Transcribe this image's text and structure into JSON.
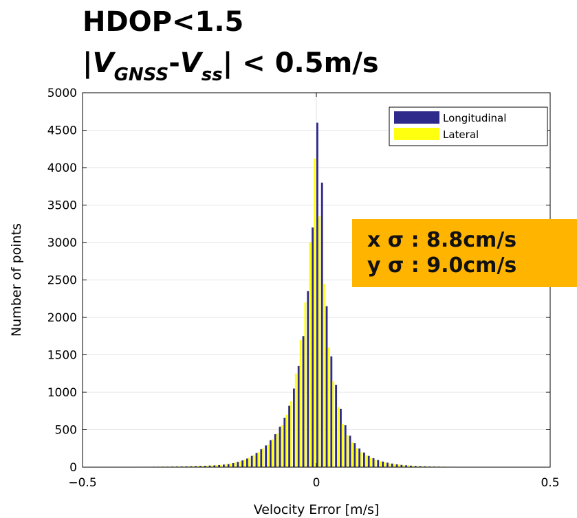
{
  "title_line1": "HDOP<1.5",
  "title_line2": {
    "prefix": "|",
    "v1": "V",
    "sub1": "GNSS",
    "dash": "-",
    "v2": "V",
    "sub2": "ss",
    "suffix": "| < 0.5m/s"
  },
  "stats": {
    "x_sigma": "x σ : 8.8cm/s",
    "y_sigma": "y σ : 9.0cm/s"
  },
  "colors": {
    "longitudinal": "#2e2a8c",
    "lateral": "#ffff10",
    "stats_background": "#ffb400"
  },
  "chart_data": {
    "type": "bar",
    "xlabel": "Velocity Error [m/s]",
    "ylabel": "Number of points",
    "xlim": [
      -0.5,
      0.5
    ],
    "ylim": [
      0,
      5000
    ],
    "xticks": [
      "−0.5",
      "0",
      "0.5"
    ],
    "yticks": [
      "0",
      "500",
      "1000",
      "1500",
      "2000",
      "2500",
      "3000",
      "3500",
      "4000",
      "4500",
      "5000"
    ],
    "grid": true,
    "legend_position": "top-right",
    "bin_width": 0.01,
    "x": [
      -0.5,
      -0.49,
      -0.48,
      -0.47,
      -0.46,
      -0.45,
      -0.44,
      -0.43,
      -0.42,
      -0.41,
      -0.4,
      -0.39,
      -0.38,
      -0.37,
      -0.36,
      -0.35,
      -0.34,
      -0.33,
      -0.32,
      -0.31,
      -0.3,
      -0.29,
      -0.28,
      -0.27,
      -0.26,
      -0.25,
      -0.24,
      -0.23,
      -0.22,
      -0.21,
      -0.2,
      -0.19,
      -0.18,
      -0.17,
      -0.16,
      -0.15,
      -0.14,
      -0.13,
      -0.12,
      -0.11,
      -0.1,
      -0.09,
      -0.08,
      -0.07,
      -0.06,
      -0.05,
      -0.04,
      -0.03,
      -0.02,
      -0.01,
      0.0,
      0.01,
      0.02,
      0.03,
      0.04,
      0.05,
      0.06,
      0.07,
      0.08,
      0.09,
      0.1,
      0.11,
      0.12,
      0.13,
      0.14,
      0.15,
      0.16,
      0.17,
      0.18,
      0.19,
      0.2,
      0.21,
      0.22,
      0.23,
      0.24,
      0.25,
      0.26,
      0.27,
      0.28,
      0.29,
      0.3,
      0.31,
      0.32,
      0.33,
      0.34,
      0.35,
      0.36,
      0.37,
      0.38,
      0.39,
      0.4,
      0.41,
      0.42,
      0.43,
      0.44,
      0.45,
      0.46,
      0.47,
      0.48,
      0.49
    ],
    "series": [
      {
        "name": "Longitudinal",
        "values": [
          2,
          2,
          2,
          2,
          3,
          3,
          3,
          3,
          3,
          4,
          4,
          4,
          5,
          5,
          5,
          6,
          6,
          7,
          7,
          8,
          9,
          10,
          11,
          12,
          14,
          16,
          18,
          21,
          24,
          28,
          35,
          42,
          55,
          70,
          90,
          115,
          150,
          190,
          240,
          290,
          360,
          440,
          540,
          660,
          820,
          1050,
          1350,
          1750,
          2350,
          3200,
          4600,
          3800,
          2150,
          1480,
          1100,
          780,
          560,
          420,
          320,
          250,
          195,
          150,
          120,
          95,
          75,
          60,
          48,
          38,
          30,
          25,
          20,
          16,
          13,
          11,
          9,
          8,
          7,
          6,
          5,
          5,
          4,
          4,
          4,
          3,
          3,
          3,
          3,
          2,
          2,
          2,
          2,
          2,
          2,
          2,
          2,
          2,
          2,
          2,
          2,
          2
        ]
      },
      {
        "name": "Lateral",
        "values": [
          2,
          2,
          2,
          2,
          3,
          3,
          3,
          3,
          4,
          4,
          4,
          5,
          5,
          5,
          6,
          6,
          7,
          7,
          8,
          9,
          10,
          11,
          12,
          14,
          16,
          18,
          21,
          24,
          28,
          32,
          40,
          48,
          62,
          78,
          100,
          125,
          160,
          200,
          250,
          300,
          370,
          450,
          560,
          700,
          880,
          1250,
          1700,
          2200,
          3000,
          4120,
          3350,
          2450,
          1600,
          1150,
          800,
          580,
          430,
          330,
          255,
          200,
          160,
          125,
          100,
          80,
          64,
          52,
          42,
          34,
          28,
          23,
          19,
          15,
          12,
          10,
          9,
          8,
          7,
          6,
          5,
          5,
          4,
          4,
          4,
          3,
          3,
          3,
          3,
          2,
          2,
          2,
          2,
          2,
          2,
          2,
          2,
          2,
          2,
          2,
          2,
          2
        ]
      }
    ]
  }
}
